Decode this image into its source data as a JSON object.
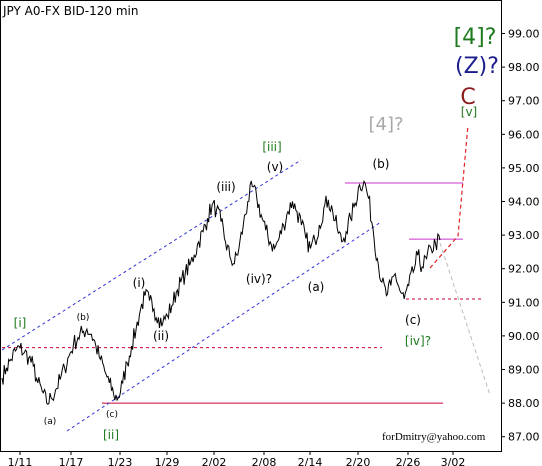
{
  "chart_data": {
    "type": "line",
    "title": "JPY A0-FX BID-120 min",
    "watermark": "forDmitry@yahoo.com",
    "ylim": [
      86.7,
      100.0
    ],
    "y_ticks": [
      "99.00",
      "98.00",
      "97.00",
      "96.00",
      "95.00",
      "94.00",
      "93.00",
      "92.00",
      "91.00",
      "90.00",
      "89.00",
      "88.00",
      "87.00"
    ],
    "x_ticks": [
      "1/11",
      "1/17",
      "1/23",
      "1/29",
      "2/02",
      "2/08",
      "2/14",
      "2/20",
      "2/26",
      "3/02"
    ],
    "series": [
      {
        "values": [
          88.75,
          89.05,
          89.3,
          89.55,
          89.65,
          89.5,
          89.35,
          89.1,
          88.6,
          88.35,
          88.0,
          88.15,
          88.4,
          88.7,
          89.05,
          89.4,
          89.75,
          89.95,
          90.1,
          90.2,
          90.05,
          89.7,
          89.3,
          88.95,
          88.6,
          88.25,
          88.15,
          88.6,
          89.2,
          89.7,
          90.2,
          90.8,
          91.2,
          91.05,
          90.8,
          90.55,
          90.4,
          90.6,
          90.9,
          91.3,
          91.6,
          91.85,
          92.1,
          92.4,
          92.8,
          93.1,
          93.5,
          93.9,
          93.75,
          93.4,
          92.8,
          92.35,
          92.15,
          92.6,
          93.3,
          94.0,
          94.45,
          94.1,
          93.6,
          93.15,
          92.8,
          92.6,
          92.9,
          93.3,
          93.7,
          94.0,
          93.7,
          93.3,
          92.9,
          92.6,
          92.85,
          93.3,
          93.8,
          94.05,
          93.7,
          93.2,
          92.8,
          93.1,
          93.5,
          93.95,
          94.5,
          94.6,
          94.1,
          93.2,
          92.3,
          91.6,
          91.2,
          91.5,
          91.85,
          91.35,
          91.1,
          91.5,
          91.9,
          92.4,
          92.05,
          92.3,
          92.6,
          92.75,
          92.85
        ],
        "color": "#000000"
      }
    ],
    "wave_labels": [
      {
        "text": "[4]?",
        "color": "#1e7a1e",
        "size": 22
      },
      {
        "text": "(Z)?",
        "color": "#1c1c8c",
        "size": 22
      },
      {
        "text": "C",
        "color": "#8b1a1a",
        "size": 22
      },
      {
        "text": "[v]",
        "color": "#1e7a1e",
        "size": 12
      },
      {
        "text": "[4]?",
        "color": "#a8a8a8",
        "size": 18
      },
      {
        "text": "[iii]",
        "color": "#1e7a1e",
        "size": 12
      },
      {
        "text": "(v)",
        "color": "#000000",
        "size": 12
      },
      {
        "text": "(iii)",
        "color": "#000000",
        "size": 12
      },
      {
        "text": "(b)",
        "color": "#000000",
        "size": 12
      },
      {
        "text": "(i)",
        "color": "#000000",
        "size": 12
      },
      {
        "text": "(iv)?",
        "color": "#000000",
        "size": 12
      },
      {
        "text": "(a)",
        "color": "#000000",
        "size": 12
      },
      {
        "text": "(ii)",
        "color": "#000000",
        "size": 12
      },
      {
        "text": "[i]",
        "color": "#1e7a1e",
        "size": 12
      },
      {
        "text": "(b)",
        "color": "#000000",
        "size": 9
      },
      {
        "text": "(c)",
        "color": "#000000",
        "size": 12
      },
      {
        "text": "[iv]?",
        "color": "#1e7a1e",
        "size": 12
      },
      {
        "text": "(a)",
        "color": "#000000",
        "size": 9
      },
      {
        "text": "(c)",
        "color": "#000000",
        "size": 9
      },
      {
        "text": "[ii]",
        "color": "#1e7a1e",
        "size": 12
      }
    ],
    "horizontal_levels": [
      {
        "value": 94.55,
        "style": "solid",
        "color": "#cc33cc"
      },
      {
        "value": 92.88,
        "style": "solid",
        "color": "#cc33cc"
      },
      {
        "value": 88.0,
        "style": "solid",
        "color": "#cc0033"
      },
      {
        "value": 91.1,
        "style": "dashed",
        "color": "#cc0033"
      },
      {
        "value": 89.65,
        "style": "dashed",
        "color": "#cc0033"
      }
    ],
    "grid": false,
    "colors": {
      "price": "#000000",
      "channel": "#3333dd",
      "projection_up": "#dd2222",
      "projection_down": "#bbbbbb"
    }
  }
}
